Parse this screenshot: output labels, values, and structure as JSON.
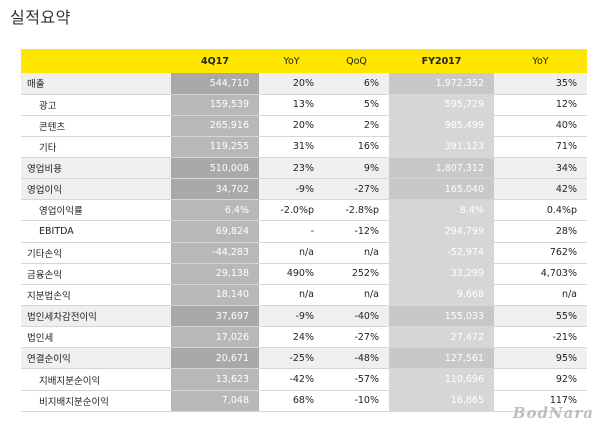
{
  "title": "실적요약",
  "table": {
    "headers": [
      "",
      "4Q17",
      "YoY",
      "QoQ",
      "FY2017",
      "YoY"
    ],
    "rows": [
      {
        "label": "매출",
        "q": "544,710",
        "yoy": "20%",
        "qoq": "6%",
        "fy": "1,972,352",
        "fy_yoy": "35%",
        "indent": false,
        "group": true
      },
      {
        "label": "광고",
        "q": "159,539",
        "yoy": "13%",
        "qoq": "5%",
        "fy": "595,729",
        "fy_yoy": "12%",
        "indent": true,
        "group": false
      },
      {
        "label": "콘텐츠",
        "q": "265,916",
        "yoy": "20%",
        "qoq": "2%",
        "fy": "985,499",
        "fy_yoy": "40%",
        "indent": true,
        "group": false
      },
      {
        "label": "기타",
        "q": "119,255",
        "yoy": "31%",
        "qoq": "16%",
        "fy": "391,123",
        "fy_yoy": "71%",
        "indent": true,
        "group": false
      },
      {
        "label": "영업비용",
        "q": "510,008",
        "yoy": "23%",
        "qoq": "9%",
        "fy": "1,807,312",
        "fy_yoy": "34%",
        "indent": false,
        "group": true
      },
      {
        "label": "영업이익",
        "q": "34,702",
        "yoy": "-9%",
        "qoq": "-27%",
        "fy": "165,040",
        "fy_yoy": "42%",
        "indent": false,
        "group": true
      },
      {
        "label": "영업이익률",
        "q": "6.4%",
        "yoy": "-2.0%p",
        "qoq": "-2.8%p",
        "fy": "8.4%",
        "fy_yoy": "0.4%p",
        "indent": true,
        "group": false
      },
      {
        "label": "EBITDA",
        "q": "69,824",
        "yoy": "-",
        "qoq": "-12%",
        "fy": "294,799",
        "fy_yoy": "28%",
        "indent": true,
        "group": false
      },
      {
        "label": "기타손익",
        "q": "-44,283",
        "yoy": "n/a",
        "qoq": "n/a",
        "fy": "-52,974",
        "fy_yoy": "762%",
        "indent": false,
        "group": false
      },
      {
        "label": "금융손익",
        "q": "29,138",
        "yoy": "490%",
        "qoq": "252%",
        "fy": "33,299",
        "fy_yoy": "4,703%",
        "indent": false,
        "group": false
      },
      {
        "label": "지분법손익",
        "q": "18,140",
        "yoy": "n/a",
        "qoq": "n/a",
        "fy": "9,668",
        "fy_yoy": "n/a",
        "indent": false,
        "group": false
      },
      {
        "label": "법인세차감전이익",
        "q": "37,697",
        "yoy": "-9%",
        "qoq": "-40%",
        "fy": "155,033",
        "fy_yoy": "55%",
        "indent": false,
        "group": true
      },
      {
        "label": "법인세",
        "q": "17,026",
        "yoy": "24%",
        "qoq": "-27%",
        "fy": "27,472",
        "fy_yoy": "-21%",
        "indent": false,
        "group": false
      },
      {
        "label": "연결순이익",
        "q": "20,671",
        "yoy": "-25%",
        "qoq": "-48%",
        "fy": "127,561",
        "fy_yoy": "95%",
        "indent": false,
        "group": true
      },
      {
        "label": "지배지분순이익",
        "q": "13,623",
        "yoy": "-42%",
        "qoq": "-57%",
        "fy": "110,696",
        "fy_yoy": "92%",
        "indent": true,
        "group": false
      },
      {
        "label": "비지배지분순이익",
        "q": "7,048",
        "yoy": "68%",
        "qoq": "-10%",
        "fy": "16,865",
        "fy_yoy": "117%",
        "indent": true,
        "group": false
      }
    ]
  },
  "watermark": "BodNara",
  "colors": {
    "header_bg": "#ffe600",
    "shade_main": "#b8b8b8",
    "shade_fy": "#d6d6d6"
  }
}
